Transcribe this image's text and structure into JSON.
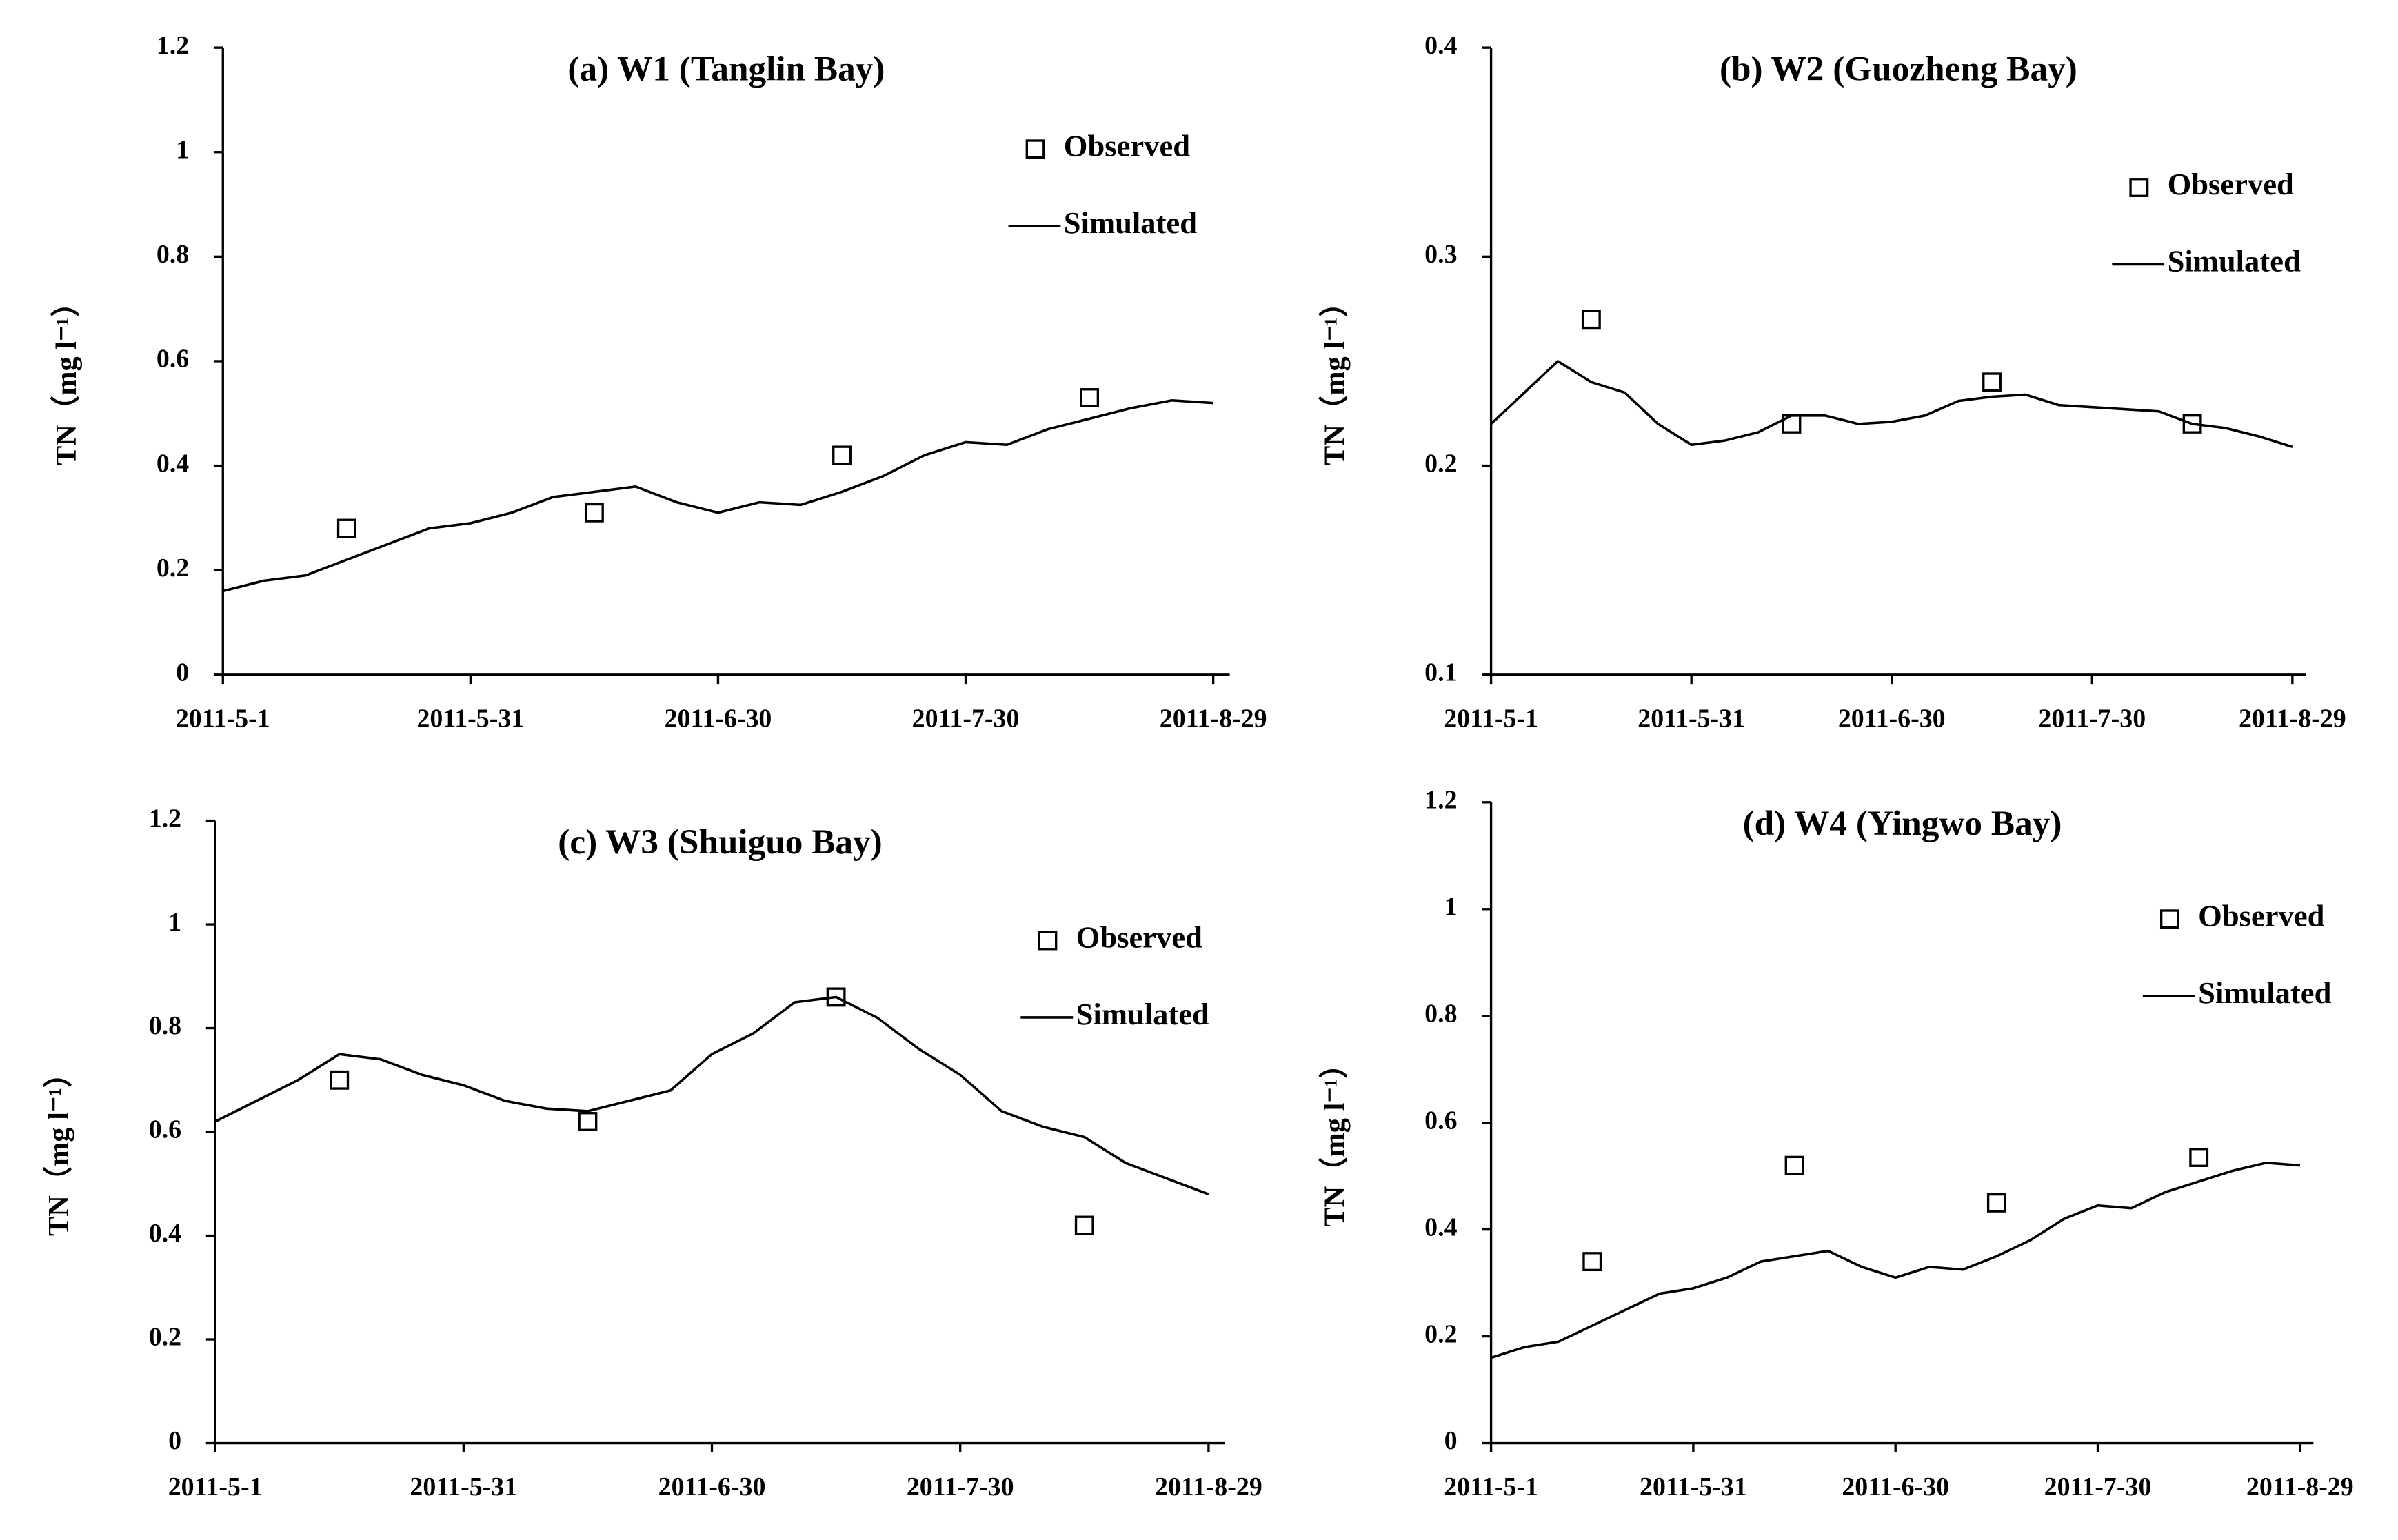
{
  "chart_data": [
    {
      "type": "line",
      "title": "(a) W1 (Tanglin Bay)",
      "ylabel": "TN（mg l⁻¹）",
      "xlim": [
        "2011-5-1",
        "2011-8-31"
      ],
      "xticks": [
        "2011-5-1",
        "2011-5-31",
        "2011-6-30",
        "2011-7-30",
        "2011-8-29"
      ],
      "ylim": [
        0,
        1.2
      ],
      "yticks": [
        0,
        0.2,
        0.4,
        0.6,
        0.8,
        1,
        1.2
      ],
      "series": [
        {
          "name": "Observed",
          "marker": "square",
          "color": "#000000",
          "x": [
            "2011-5-16",
            "2011-6-15",
            "2011-7-15",
            "2011-8-14"
          ],
          "values": [
            0.28,
            0.31,
            0.42,
            0.53
          ]
        },
        {
          "name": "Simulated",
          "color": "#000000",
          "x": [
            "2011-5-1",
            "2011-5-6",
            "2011-5-11",
            "2011-5-16",
            "2011-5-21",
            "2011-5-26",
            "2011-5-31",
            "2011-6-5",
            "2011-6-10",
            "2011-6-15",
            "2011-6-20",
            "2011-6-25",
            "2011-6-30",
            "2011-7-5",
            "2011-7-10",
            "2011-7-15",
            "2011-7-20",
            "2011-7-25",
            "2011-7-30",
            "2011-8-4",
            "2011-8-9",
            "2011-8-14",
            "2011-8-19",
            "2011-8-24",
            "2011-8-29"
          ],
          "values": [
            0.16,
            0.18,
            0.19,
            0.22,
            0.25,
            0.28,
            0.29,
            0.31,
            0.34,
            0.35,
            0.36,
            0.33,
            0.31,
            0.33,
            0.325,
            0.35,
            0.38,
            0.42,
            0.445,
            0.44,
            0.47,
            0.49,
            0.51,
            0.525,
            0.52
          ]
        }
      ]
    },
    {
      "type": "line",
      "title": "(b) W2 (Guozheng Bay)",
      "ylabel": "TN（mg l⁻¹）",
      "xlim": [
        "2011-5-1",
        "2011-8-31"
      ],
      "xticks": [
        "2011-5-1",
        "2011-5-31",
        "2011-6-30",
        "2011-7-30",
        "2011-8-29"
      ],
      "ylim": [
        0.1,
        0.4
      ],
      "yticks": [
        0.1,
        0.2,
        0.3,
        0.4
      ],
      "series": [
        {
          "name": "Observed",
          "marker": "square",
          "color": "#000000",
          "x": [
            "2011-5-16",
            "2011-6-15",
            "2011-7-15",
            "2011-8-14"
          ],
          "values": [
            0.27,
            0.22,
            0.24,
            0.22
          ]
        },
        {
          "name": "Simulated",
          "color": "#000000",
          "x": [
            "2011-5-1",
            "2011-5-6",
            "2011-5-11",
            "2011-5-16",
            "2011-5-21",
            "2011-5-26",
            "2011-5-31",
            "2011-6-5",
            "2011-6-10",
            "2011-6-15",
            "2011-6-20",
            "2011-6-25",
            "2011-6-30",
            "2011-7-5",
            "2011-7-10",
            "2011-7-15",
            "2011-7-20",
            "2011-7-25",
            "2011-7-30",
            "2011-8-4",
            "2011-8-9",
            "2011-8-14",
            "2011-8-19",
            "2011-8-24",
            "2011-8-29"
          ],
          "values": [
            0.22,
            0.235,
            0.25,
            0.24,
            0.235,
            0.22,
            0.21,
            0.212,
            0.216,
            0.224,
            0.224,
            0.22,
            0.221,
            0.224,
            0.231,
            0.233,
            0.234,
            0.229,
            0.228,
            0.227,
            0.226,
            0.22,
            0.218,
            0.214,
            0.209
          ]
        }
      ]
    },
    {
      "type": "line",
      "title": "(c) W3 (Shuiguo Bay)",
      "ylabel": "TN（mg l⁻¹）",
      "xlim": [
        "2011-5-1",
        "2011-8-31"
      ],
      "xticks": [
        "2011-5-1",
        "2011-5-31",
        "2011-6-30",
        "2011-7-30",
        "2011-8-29"
      ],
      "ylim": [
        0,
        1.2
      ],
      "yticks": [
        0,
        0.2,
        0.4,
        0.6,
        0.8,
        1,
        1.2
      ],
      "series": [
        {
          "name": "Observed",
          "marker": "square",
          "color": "#000000",
          "x": [
            "2011-5-16",
            "2011-6-15",
            "2011-7-15",
            "2011-8-14"
          ],
          "values": [
            0.7,
            0.62,
            0.86,
            0.42
          ]
        },
        {
          "name": "Simulated",
          "color": "#000000",
          "x": [
            "2011-5-1",
            "2011-5-6",
            "2011-5-11",
            "2011-5-16",
            "2011-5-21",
            "2011-5-26",
            "2011-5-31",
            "2011-6-5",
            "2011-6-10",
            "2011-6-15",
            "2011-6-20",
            "2011-6-25",
            "2011-6-30",
            "2011-7-5",
            "2011-7-10",
            "2011-7-15",
            "2011-7-20",
            "2011-7-25",
            "2011-7-30",
            "2011-8-4",
            "2011-8-9",
            "2011-8-14",
            "2011-8-19",
            "2011-8-24",
            "2011-8-29"
          ],
          "values": [
            0.62,
            0.66,
            0.7,
            0.75,
            0.74,
            0.71,
            0.69,
            0.66,
            0.645,
            0.64,
            0.66,
            0.68,
            0.75,
            0.79,
            0.85,
            0.86,
            0.82,
            0.76,
            0.71,
            0.64,
            0.61,
            0.59,
            0.54,
            0.51,
            0.48
          ]
        }
      ]
    },
    {
      "type": "line",
      "title": "(d)  W4 (Yingwo Bay)",
      "ylabel": "TN（mg l⁻¹）",
      "xlim": [
        "2011-5-1",
        "2011-8-31"
      ],
      "xticks": [
        "2011-5-1",
        "2011-5-31",
        "2011-6-30",
        "2011-7-30",
        "2011-8-29"
      ],
      "ylim": [
        0,
        1.2
      ],
      "yticks": [
        0,
        0.2,
        0.4,
        0.6,
        0.8,
        1,
        1.2
      ],
      "series": [
        {
          "name": "Observed",
          "marker": "square",
          "color": "#000000",
          "x": [
            "2011-5-16",
            "2011-6-15",
            "2011-7-15",
            "2011-8-14"
          ],
          "values": [
            0.34,
            0.52,
            0.45,
            0.535
          ]
        },
        {
          "name": "Simulated",
          "color": "#000000",
          "x": [
            "2011-5-1",
            "2011-5-6",
            "2011-5-11",
            "2011-5-16",
            "2011-5-21",
            "2011-5-26",
            "2011-5-31",
            "2011-6-5",
            "2011-6-10",
            "2011-6-15",
            "2011-6-20",
            "2011-6-25",
            "2011-6-30",
            "2011-7-5",
            "2011-7-10",
            "2011-7-15",
            "2011-7-20",
            "2011-7-25",
            "2011-7-30",
            "2011-8-4",
            "2011-8-9",
            "2011-8-14",
            "2011-8-19",
            "2011-8-24",
            "2011-8-29"
          ],
          "values": [
            0.16,
            0.18,
            0.19,
            0.22,
            0.25,
            0.28,
            0.29,
            0.31,
            0.34,
            0.35,
            0.36,
            0.33,
            0.31,
            0.33,
            0.325,
            0.35,
            0.38,
            0.42,
            0.445,
            0.44,
            0.47,
            0.49,
            0.51,
            0.525,
            0.52
          ]
        }
      ]
    }
  ]
}
